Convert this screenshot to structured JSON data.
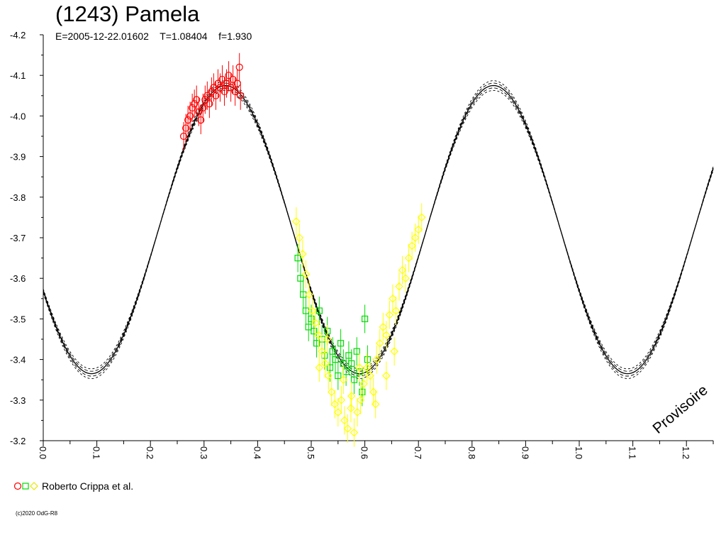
{
  "chart_data": {
    "type": "scatter",
    "title": "(1243) Pamela",
    "subtitle": "E=2005-12-22.01602    T=1.08404    f=1.930",
    "epoch": "2005-12-22.01602",
    "period": 1.08404,
    "f": 1.93,
    "xlim": [
      0.0,
      1.25
    ],
    "ylim": [
      -4.2,
      -3.2
    ],
    "y_inverted": true,
    "x_ticks": [
      "0.0",
      "0.1",
      "0.2",
      "0.3",
      "0.4",
      "0.5",
      "0.6",
      "0.7",
      "0.8",
      "0.9",
      "1.0",
      "1.1",
      "1.2"
    ],
    "y_ticks": [
      "-4.2",
      "-4.1",
      "-4.0",
      "-3.9",
      "-3.8",
      "-3.7",
      "-3.6",
      "-3.5",
      "-3.4",
      "-3.3",
      "-3.2"
    ],
    "annotation": "Provisoire",
    "legend": {
      "label": "Roberto Crippa et al.",
      "markers": [
        {
          "shape": "circle",
          "color": "#ff0000"
        },
        {
          "shape": "square",
          "color": "#00dd00"
        },
        {
          "shape": "diamond",
          "color": "#ffff00"
        }
      ]
    },
    "model": {
      "description": "fitted lightcurve with envelope",
      "minima": [
        0.09,
        1.09
      ],
      "maxima": [
        0.34,
        0.84
      ],
      "min_mag": -3.365,
      "max_mag": -4.075
    },
    "series": [
      {
        "marker": "circle",
        "color": "#ff0000",
        "x_range": [
          0.26,
          0.37
        ],
        "points": [
          [
            0.262,
            -3.95
          ],
          [
            0.266,
            -3.97
          ],
          [
            0.27,
            -3.99
          ],
          [
            0.274,
            -4.0
          ],
          [
            0.278,
            -4.02
          ],
          [
            0.282,
            -4.03
          ],
          [
            0.286,
            -4.04
          ],
          [
            0.29,
            -4.01
          ],
          [
            0.294,
            -3.99
          ],
          [
            0.298,
            -4.02
          ],
          [
            0.302,
            -4.04
          ],
          [
            0.306,
            -4.05
          ],
          [
            0.31,
            -4.03
          ],
          [
            0.314,
            -4.06
          ],
          [
            0.318,
            -4.07
          ],
          [
            0.322,
            -4.05
          ],
          [
            0.326,
            -4.08
          ],
          [
            0.33,
            -4.07
          ],
          [
            0.334,
            -4.09
          ],
          [
            0.338,
            -4.06
          ],
          [
            0.342,
            -4.08
          ],
          [
            0.346,
            -4.1
          ],
          [
            0.35,
            -4.07
          ],
          [
            0.354,
            -4.09
          ],
          [
            0.358,
            -4.06
          ],
          [
            0.362,
            -4.08
          ],
          [
            0.366,
            -4.12
          ],
          [
            0.368,
            -4.05
          ]
        ]
      },
      {
        "marker": "square",
        "color": "#00dd00",
        "x_range": [
          0.47,
          0.61
        ],
        "points": [
          [
            0.475,
            -3.65
          ],
          [
            0.48,
            -3.6
          ],
          [
            0.485,
            -3.56
          ],
          [
            0.49,
            -3.52
          ],
          [
            0.495,
            -3.48
          ],
          [
            0.5,
            -3.5
          ],
          [
            0.505,
            -3.47
          ],
          [
            0.51,
            -3.44
          ],
          [
            0.515,
            -3.52
          ],
          [
            0.52,
            -3.45
          ],
          [
            0.525,
            -3.41
          ],
          [
            0.53,
            -3.47
          ],
          [
            0.535,
            -3.38
          ],
          [
            0.54,
            -3.42
          ],
          [
            0.545,
            -3.4
          ],
          [
            0.55,
            -3.36
          ],
          [
            0.555,
            -3.44
          ],
          [
            0.56,
            -3.39
          ],
          [
            0.565,
            -3.37
          ],
          [
            0.57,
            -3.41
          ],
          [
            0.575,
            -3.39
          ],
          [
            0.58,
            -3.35
          ],
          [
            0.585,
            -3.42
          ],
          [
            0.59,
            -3.37
          ],
          [
            0.595,
            -3.32
          ],
          [
            0.6,
            -3.5
          ],
          [
            0.605,
            -3.4
          ]
        ]
      },
      {
        "marker": "diamond",
        "color": "#ffff00",
        "x_range": [
          0.47,
          0.71
        ],
        "points": [
          [
            0.472,
            -3.74
          ],
          [
            0.478,
            -3.7
          ],
          [
            0.484,
            -3.66
          ],
          [
            0.49,
            -3.61
          ],
          [
            0.496,
            -3.56
          ],
          [
            0.502,
            -3.52
          ],
          [
            0.508,
            -3.49
          ],
          [
            0.514,
            -3.46
          ],
          [
            0.52,
            -3.42
          ],
          [
            0.526,
            -3.39
          ],
          [
            0.532,
            -3.36
          ],
          [
            0.538,
            -3.32
          ],
          [
            0.544,
            -3.29
          ],
          [
            0.55,
            -3.27
          ],
          [
            0.556,
            -3.3
          ],
          [
            0.562,
            -3.25
          ],
          [
            0.568,
            -3.23
          ],
          [
            0.574,
            -3.28
          ],
          [
            0.58,
            -3.22
          ],
          [
            0.586,
            -3.27
          ],
          [
            0.592,
            -3.3
          ],
          [
            0.598,
            -3.34
          ],
          [
            0.604,
            -3.38
          ],
          [
            0.61,
            -3.36
          ],
          [
            0.616,
            -3.32
          ],
          [
            0.622,
            -3.4
          ],
          [
            0.628,
            -3.44
          ],
          [
            0.634,
            -3.48
          ],
          [
            0.64,
            -3.46
          ],
          [
            0.646,
            -3.51
          ],
          [
            0.652,
            -3.55
          ],
          [
            0.658,
            -3.52
          ],
          [
            0.664,
            -3.58
          ],
          [
            0.67,
            -3.62
          ],
          [
            0.676,
            -3.6
          ],
          [
            0.682,
            -3.65
          ],
          [
            0.688,
            -3.68
          ],
          [
            0.694,
            -3.7
          ],
          [
            0.7,
            -3.72
          ],
          [
            0.706,
            -3.75
          ],
          [
            0.56,
            -3.35
          ],
          [
            0.575,
            -3.31
          ],
          [
            0.59,
            -3.38
          ],
          [
            0.62,
            -3.29
          ],
          [
            0.655,
            -3.42
          ],
          [
            0.53,
            -3.45
          ],
          [
            0.515,
            -3.38
          ],
          [
            0.64,
            -3.36
          ]
        ]
      }
    ]
  },
  "copyright": "(c)2020 OdG-R8"
}
